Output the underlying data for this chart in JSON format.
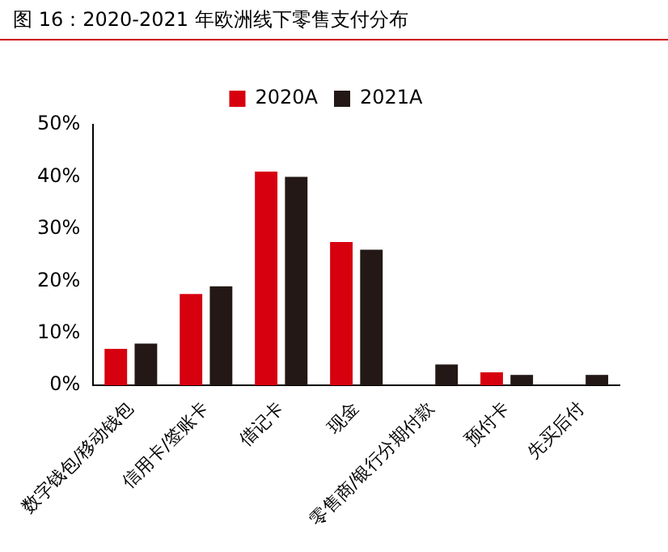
{
  "chart_data": {
    "type": "bar",
    "title": "图 16：2020-2021 年欧洲线下零售支付分布",
    "categories": [
      "数字钱包/移动钱包",
      "信用卡/签账卡",
      "借记卡",
      "现金",
      "零售商/银行分期付款",
      "预付卡",
      "先买后付"
    ],
    "series": [
      {
        "name": "2020A",
        "color": "#d7000f",
        "values": [
          7,
          17.5,
          41,
          27.5,
          0,
          2.5,
          0
        ]
      },
      {
        "name": "2021A",
        "color": "#231815",
        "values": [
          8,
          19,
          40,
          26,
          4,
          2,
          2
        ]
      }
    ],
    "ylim": [
      0,
      50
    ],
    "yticks": [
      {
        "value": 0,
        "label": "0%"
      },
      {
        "value": 10,
        "label": "10%"
      },
      {
        "value": 20,
        "label": "20%"
      },
      {
        "value": 30,
        "label": "30%"
      },
      {
        "value": 40,
        "label": "40%"
      },
      {
        "value": 50,
        "label": "50%"
      }
    ],
    "grid": false,
    "legend": "top"
  }
}
